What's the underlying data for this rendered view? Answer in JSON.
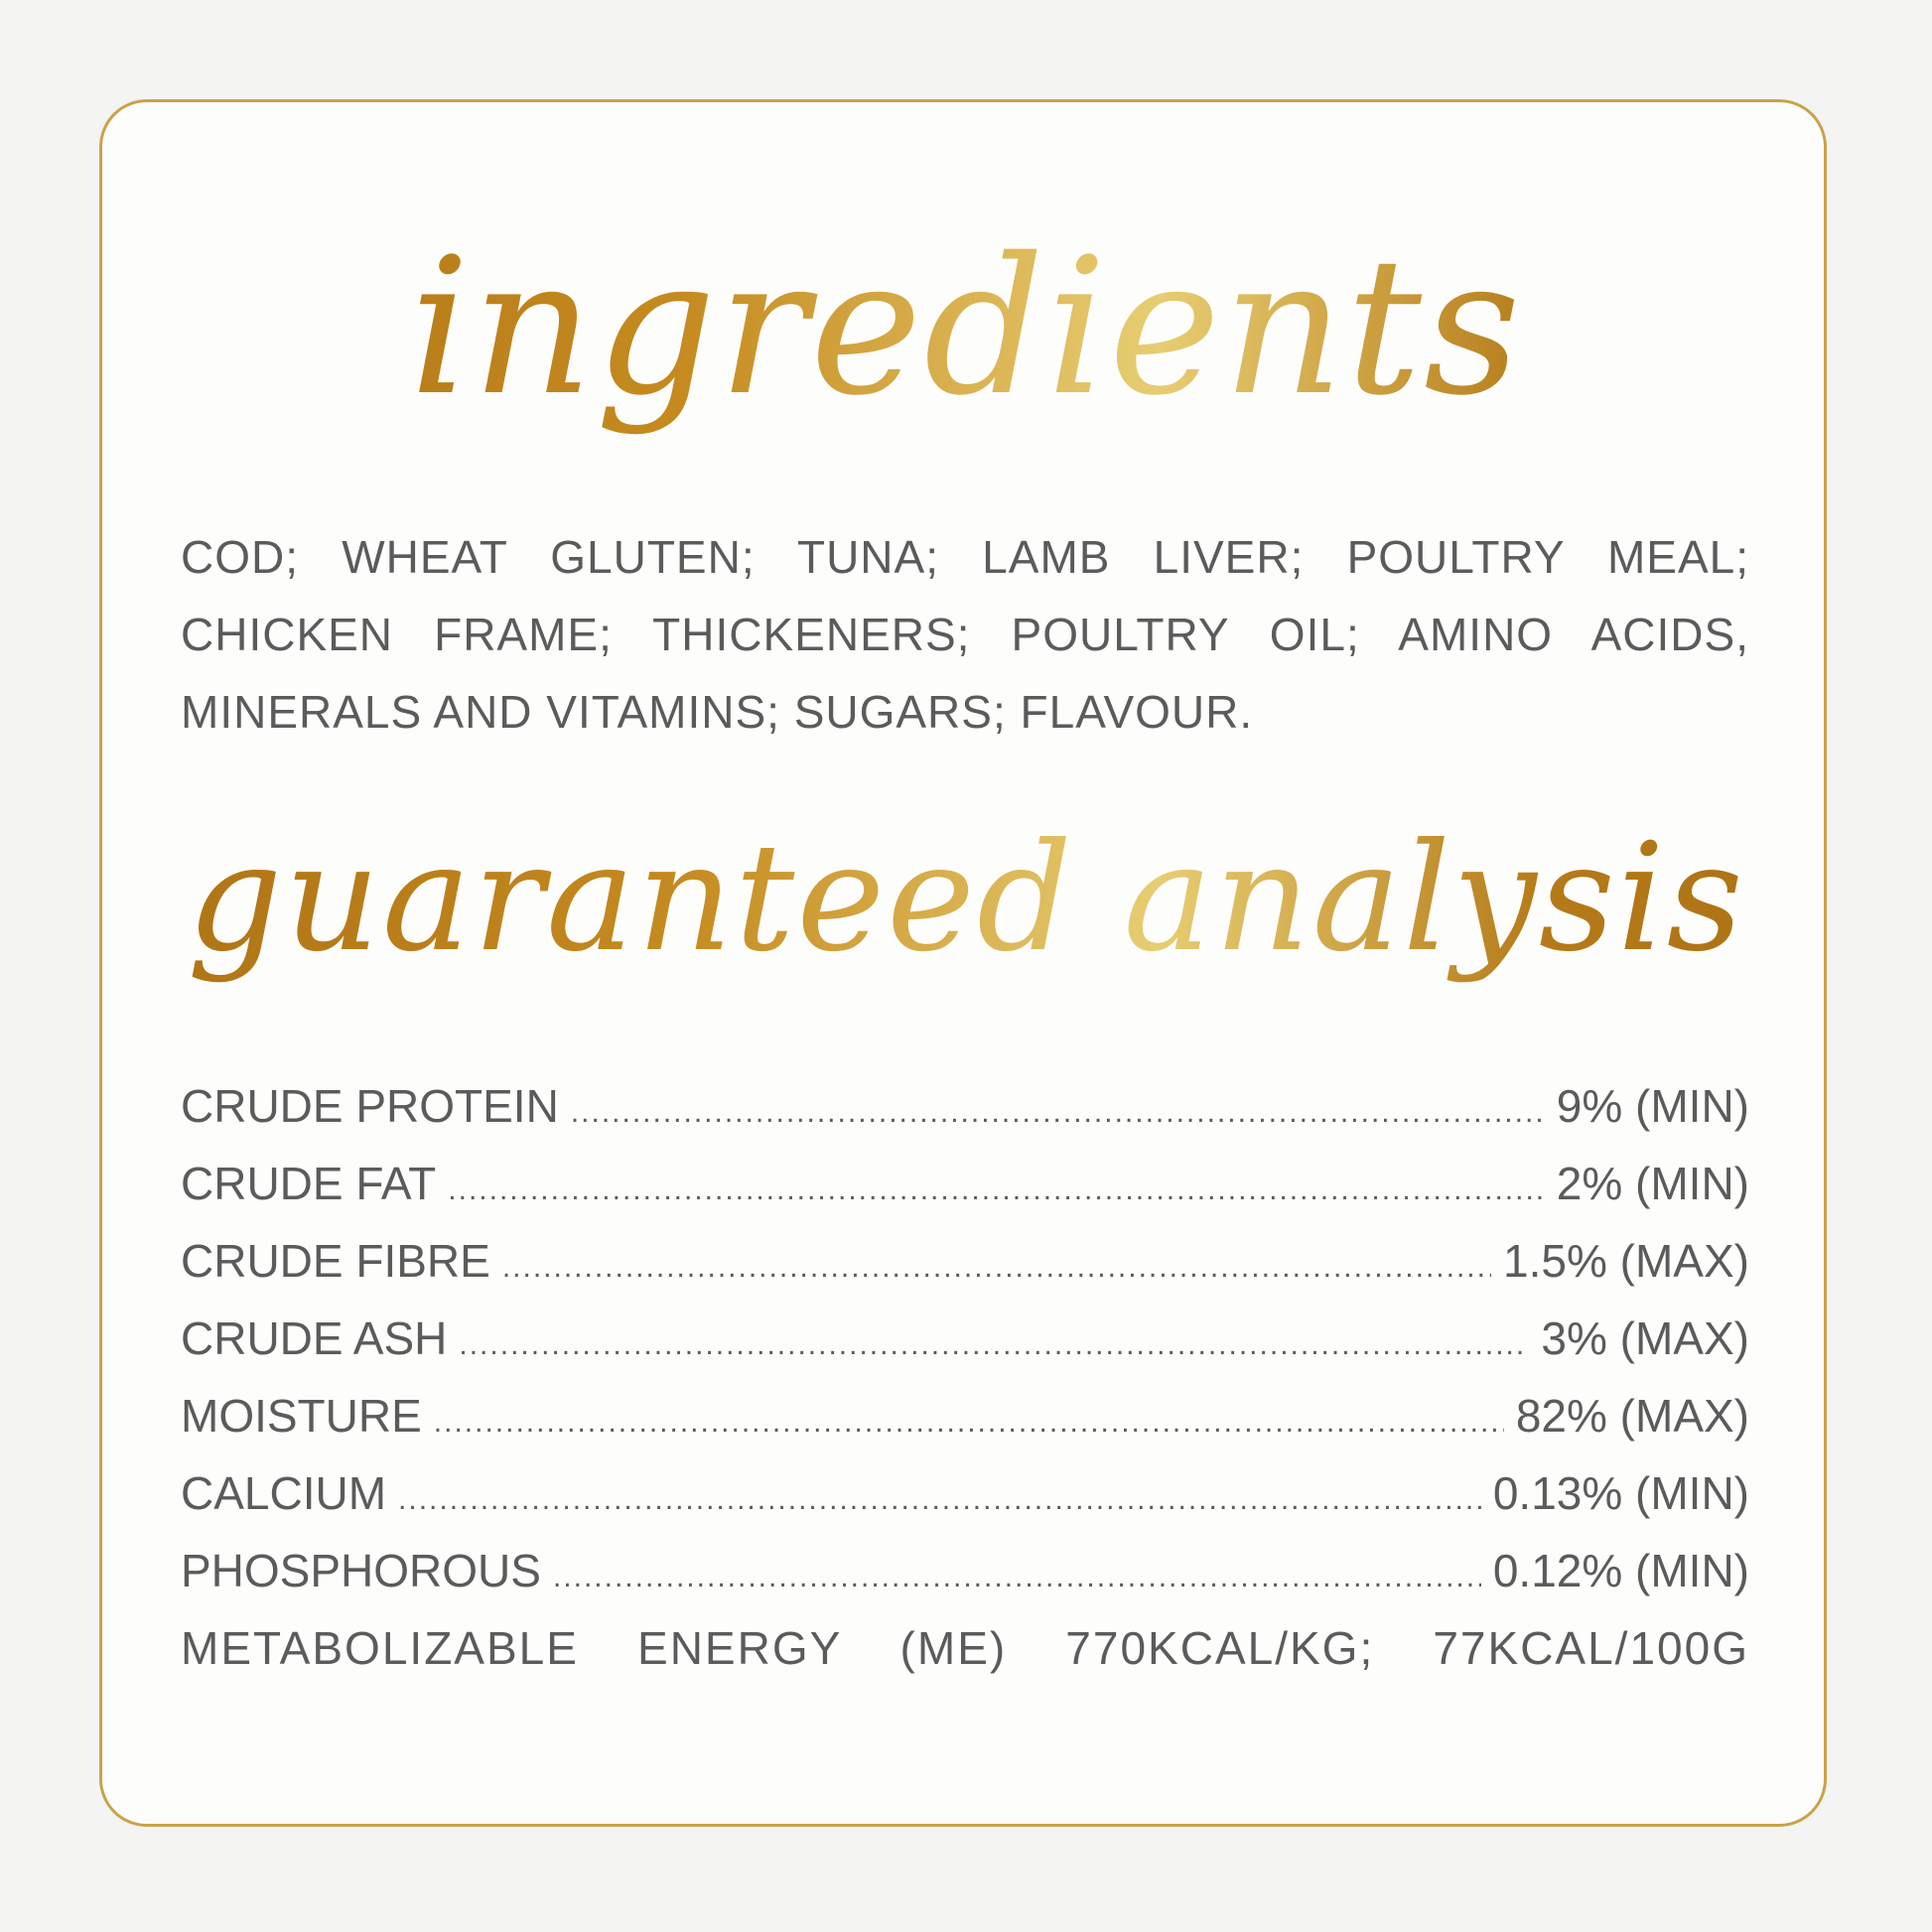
{
  "ingredients": {
    "title": "ingredients",
    "lines": [
      "COD; WHEAT GLUTEN; TUNA; LAMB LIVER; POULTRY MEAL;",
      "CHICKEN FRAME; THICKENERS; POULTRY OIL; AMINO ACIDS,",
      "MINERALS AND VITAMINS; SUGARS; FLAVOUR."
    ]
  },
  "analysis": {
    "title": "guaranteed analysis",
    "rows": [
      {
        "label": "CRUDE PROTEIN",
        "value": "9% (MIN)"
      },
      {
        "label": "CRUDE FAT",
        "value": "2% (MIN)"
      },
      {
        "label": "CRUDE FIBRE",
        "value": "1.5% (MAX)"
      },
      {
        "label": "CRUDE ASH",
        "value": "3% (MAX)"
      },
      {
        "label": "MOISTURE",
        "value": "82% (MAX)"
      },
      {
        "label": "CALCIUM",
        "value": "0.13% (MIN)"
      },
      {
        "label": "PHOSPHOROUS",
        "value": "0.12% (MIN)"
      }
    ],
    "energy": "METABOLIZABLE ENERGY (ME) 770KCAL/KG; 77KCAL/100G"
  },
  "colors": {
    "gold": "#c9a24a",
    "text": "#5b5b5b"
  }
}
